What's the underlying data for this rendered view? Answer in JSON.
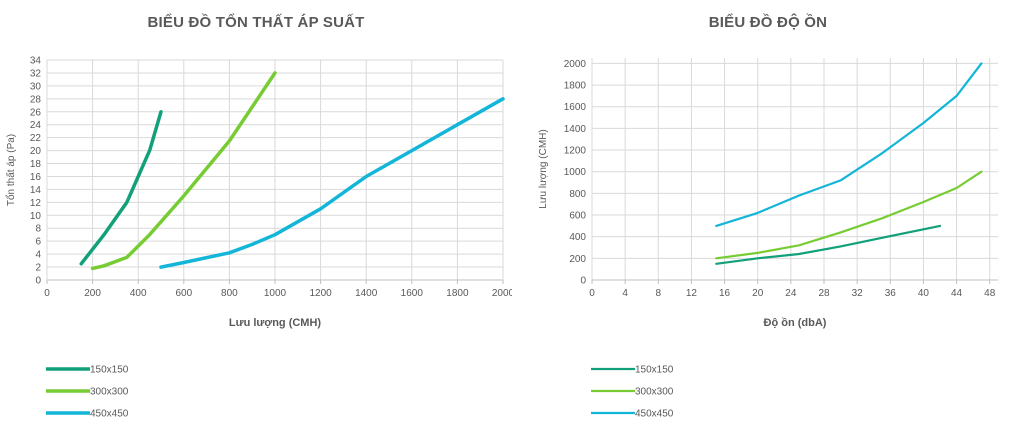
{
  "chart_data": [
    {
      "type": "line",
      "title": "BIỂU ĐỒ TỔN THẤT ÁP SUẤT",
      "xlabel": "Lưu lượng (CMH)",
      "ylabel": "Tổn thất áp (Pa)",
      "xlim": [
        0,
        2000
      ],
      "ylim": [
        0,
        34
      ],
      "x_ticks": [
        0,
        200,
        400,
        600,
        800,
        1000,
        1200,
        1400,
        1600,
        1800,
        2000
      ],
      "y_ticks": [
        0,
        2,
        4,
        6,
        8,
        10,
        12,
        14,
        16,
        18,
        20,
        22,
        24,
        26,
        28,
        30,
        32,
        34
      ],
      "grid": "both",
      "legend_position": "bottom-left",
      "series": [
        {
          "name": "150x150",
          "color": "#12a07a",
          "points": [
            [
              150,
              2.5
            ],
            [
              250,
              7
            ],
            [
              350,
              12
            ],
            [
              400,
              16
            ],
            [
              450,
              20
            ],
            [
              500,
              26
            ]
          ]
        },
        {
          "name": "300x300",
          "color": "#77cc33",
          "points": [
            [
              200,
              1.8
            ],
            [
              250,
              2.2
            ],
            [
              350,
              3.5
            ],
            [
              450,
              7
            ],
            [
              600,
              13
            ],
            [
              800,
              21.5
            ],
            [
              1000,
              32
            ]
          ]
        },
        {
          "name": "450x450",
          "color": "#13b5d8",
          "points": [
            [
              500,
              2
            ],
            [
              600,
              2.7
            ],
            [
              800,
              4.2
            ],
            [
              900,
              5.5
            ],
            [
              1000,
              7
            ],
            [
              1200,
              11
            ],
            [
              1400,
              16
            ],
            [
              1600,
              20
            ],
            [
              1800,
              24
            ],
            [
              2000,
              28
            ]
          ]
        }
      ]
    },
    {
      "type": "line",
      "title": "BIỂU ĐỒ ĐỘ ỒN",
      "xlabel": "Độ ồn (dbA)",
      "ylabel": "Lưu lượng (CMH)",
      "xlim": [
        0,
        49
      ],
      "ylim": [
        0,
        2050
      ],
      "x_ticks": [
        0,
        4,
        8,
        12,
        16,
        20,
        24,
        28,
        32,
        36,
        40,
        44,
        48
      ],
      "y_ticks": [
        0,
        200,
        400,
        600,
        800,
        1000,
        1200,
        1400,
        1600,
        1800,
        2000
      ],
      "grid": "both",
      "legend_position": "bottom-left",
      "series": [
        {
          "name": "150x150",
          "color": "#12a07a",
          "points": [
            [
              15,
              150
            ],
            [
              20,
              200
            ],
            [
              25,
              240
            ],
            [
              30,
              310
            ],
            [
              35,
              390
            ],
            [
              42,
              500
            ]
          ]
        },
        {
          "name": "300x300",
          "color": "#77cc33",
          "points": [
            [
              15,
              200
            ],
            [
              20,
              250
            ],
            [
              25,
              320
            ],
            [
              30,
              440
            ],
            [
              35,
              570
            ],
            [
              40,
              720
            ],
            [
              44,
              850
            ],
            [
              47,
              1000
            ]
          ]
        },
        {
          "name": "450x450",
          "color": "#13b5d8",
          "points": [
            [
              15,
              500
            ],
            [
              20,
              620
            ],
            [
              25,
              780
            ],
            [
              30,
              920
            ],
            [
              35,
              1170
            ],
            [
              40,
              1450
            ],
            [
              44,
              1700
            ],
            [
              47,
              2000
            ]
          ]
        }
      ]
    }
  ]
}
